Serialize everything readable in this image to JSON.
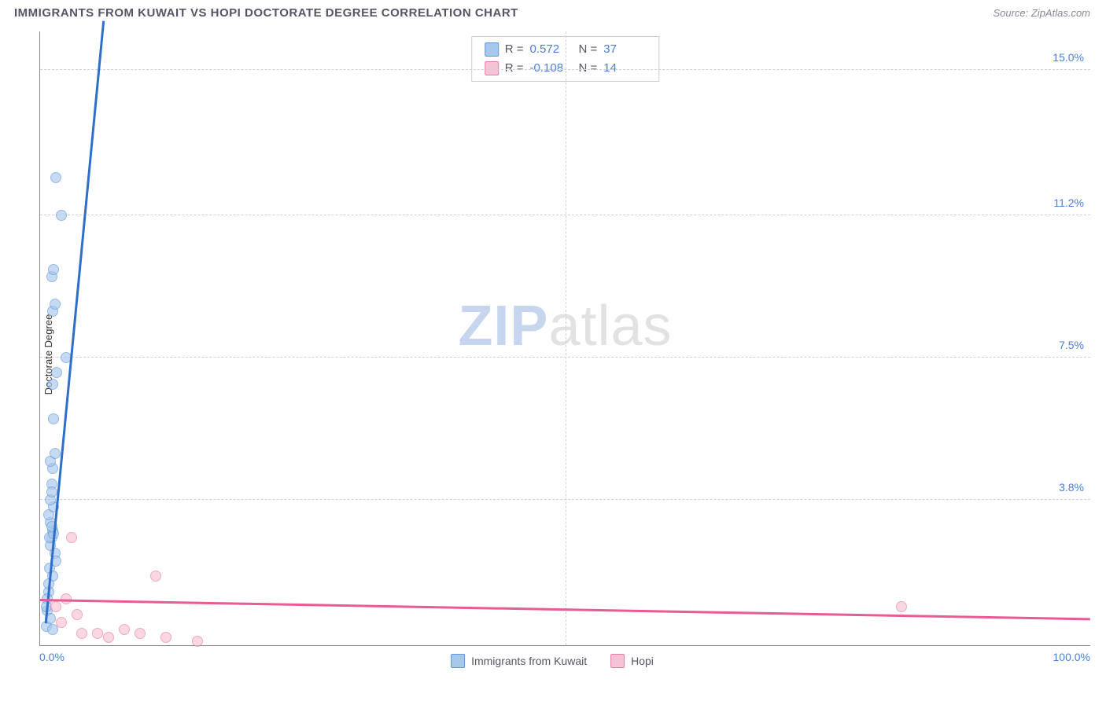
{
  "title": "IMMIGRANTS FROM KUWAIT VS HOPI DOCTORATE DEGREE CORRELATION CHART",
  "source": "Source: ZipAtlas.com",
  "ylabel": "Doctorate Degree",
  "watermark": {
    "zip": "ZIP",
    "atlas": "atlas"
  },
  "chart": {
    "type": "scatter",
    "background_color": "#ffffff",
    "grid_color": "#d0d0d8",
    "axis_color": "#888888",
    "xlim": [
      0,
      100
    ],
    "ylim": [
      0,
      16
    ],
    "xticks": [
      {
        "pos": 0,
        "label": "0.0%"
      },
      {
        "pos": 100,
        "label": "100.0%"
      }
    ],
    "yticks": [
      {
        "pos": 3.8,
        "label": "3.8%"
      },
      {
        "pos": 7.5,
        "label": "7.5%"
      },
      {
        "pos": 11.2,
        "label": "11.2%"
      },
      {
        "pos": 15.0,
        "label": "15.0%"
      }
    ],
    "xgrid": [
      50
    ],
    "marker_size": 14,
    "series": [
      {
        "name": "Immigrants from Kuwait",
        "color_fill": "#a8c7ec",
        "color_stroke": "#5e96d9",
        "r_label": "R =",
        "r": "0.572",
        "n_label": "N =",
        "n": "37",
        "trend": {
          "x1": 0.5,
          "y1": 0.6,
          "x2": 6.0,
          "y2": 16.3,
          "color": "#2e6fc7",
          "dash_beyond": true
        },
        "points": [
          [
            0.6,
            0.5
          ],
          [
            0.7,
            0.9
          ],
          [
            0.8,
            1.4
          ],
          [
            0.9,
            2.0
          ],
          [
            1.0,
            2.6
          ],
          [
            1.1,
            2.8
          ],
          [
            1.2,
            3.0
          ],
          [
            1.0,
            3.2
          ],
          [
            0.8,
            3.4
          ],
          [
            1.3,
            3.6
          ],
          [
            1.1,
            4.2
          ],
          [
            1.2,
            4.6
          ],
          [
            1.0,
            4.8
          ],
          [
            1.4,
            5.0
          ],
          [
            1.3,
            5.9
          ],
          [
            1.2,
            6.8
          ],
          [
            1.6,
            7.1
          ],
          [
            2.5,
            7.5
          ],
          [
            1.2,
            8.7
          ],
          [
            1.4,
            8.9
          ],
          [
            1.1,
            9.6
          ],
          [
            1.3,
            9.8
          ],
          [
            2.0,
            11.2
          ],
          [
            1.5,
            12.2
          ],
          [
            1.4,
            2.4
          ],
          [
            0.9,
            2.8
          ],
          [
            1.0,
            3.8
          ],
          [
            1.1,
            4.0
          ],
          [
            1.2,
            1.8
          ],
          [
            0.8,
            1.6
          ],
          [
            0.7,
            1.2
          ],
          [
            1.5,
            2.2
          ],
          [
            1.3,
            2.9
          ],
          [
            1.1,
            3.1
          ],
          [
            1.0,
            0.7
          ],
          [
            1.2,
            0.4
          ],
          [
            0.6,
            1.0
          ]
        ]
      },
      {
        "name": "Hopi",
        "color_fill": "#f6c3d5",
        "color_stroke": "#e77ba8",
        "r_label": "R =",
        "r": "-0.108",
        "n_label": "N =",
        "n": "14",
        "trend": {
          "x1": 0,
          "y1": 1.2,
          "x2": 100,
          "y2": 0.7,
          "color": "#e85b94",
          "dash_beyond": false
        },
        "points": [
          [
            1.5,
            1.0
          ],
          [
            2.5,
            1.2
          ],
          [
            3.0,
            2.8
          ],
          [
            4.0,
            0.3
          ],
          [
            5.5,
            0.3
          ],
          [
            6.5,
            0.2
          ],
          [
            8.0,
            0.4
          ],
          [
            9.5,
            0.3
          ],
          [
            11.0,
            1.8
          ],
          [
            12.0,
            0.2
          ],
          [
            15.0,
            0.1
          ],
          [
            2.0,
            0.6
          ],
          [
            3.5,
            0.8
          ],
          [
            82.0,
            1.0
          ]
        ]
      }
    ]
  },
  "legend": {
    "items": [
      {
        "label": "Immigrants from Kuwait",
        "fill": "#a8c7ec",
        "stroke": "#5e96d9"
      },
      {
        "label": "Hopi",
        "fill": "#f6c3d5",
        "stroke": "#e77ba8"
      }
    ]
  }
}
